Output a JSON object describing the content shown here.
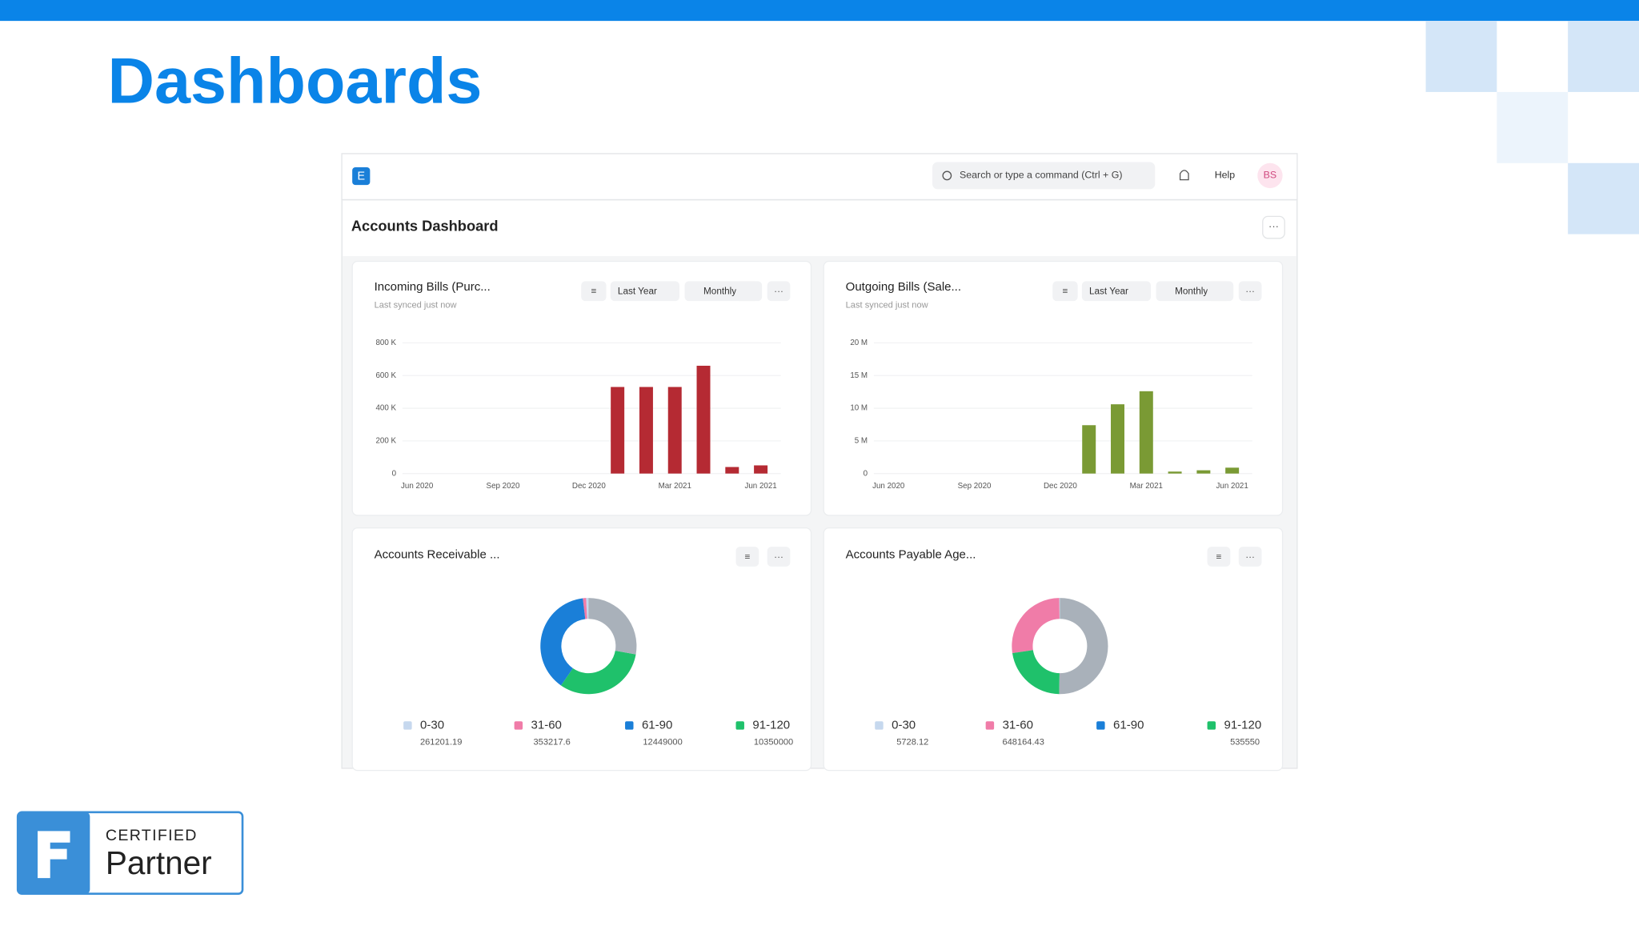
{
  "slide": {
    "title": "Dashboards",
    "badge": {
      "line1": "CERTIFIED",
      "line2": "Partner"
    }
  },
  "navbar": {
    "logo": "E",
    "search": "Search or type a command (Ctrl + G)",
    "help": "Help",
    "avatar": "BS"
  },
  "page": {
    "title": "Accounts Dashboard"
  },
  "chart_data": [
    {
      "type": "bar",
      "title": "Incoming Bills (Purc...",
      "subtitle": "Last synced just now",
      "filters": [
        "Last Year",
        "Monthly"
      ],
      "categories": [
        "Jun 2020",
        null,
        null,
        "Sep 2020",
        null,
        null,
        "Dec 2020",
        null,
        null,
        "Mar 2021",
        null,
        null,
        "Jun 2021"
      ],
      "values": [
        0,
        0,
        0,
        0,
        0,
        0,
        0,
        530000,
        530000,
        530000,
        660000,
        40000,
        50000
      ],
      "color": "#b52a33",
      "ylim": [
        0,
        800000
      ],
      "yticks": [
        0,
        {
          "value": 200000,
          "label": "200 K"
        },
        {
          "value": 400000,
          "label": "400 K"
        },
        {
          "value": 600000,
          "label": "600 K"
        },
        {
          "value": 800000,
          "label": "800 K"
        }
      ]
    },
    {
      "type": "bar",
      "title": "Outgoing Bills (Sale...",
      "subtitle": "Last synced just now",
      "filters": [
        "Last Year",
        "Monthly"
      ],
      "categories": [
        "Jun 2020",
        null,
        null,
        "Sep 2020",
        null,
        null,
        "Dec 2020",
        null,
        null,
        "Mar 2021",
        null,
        null,
        "Jun 2021"
      ],
      "values": [
        0,
        0,
        0,
        0,
        0,
        0,
        0,
        7400000,
        10600000,
        12600000,
        300000,
        500000,
        900000
      ],
      "color": "#7a9a34",
      "ylim": [
        0,
        20000000
      ],
      "yticks": [
        0,
        {
          "value": 5000000,
          "label": "5 M"
        },
        {
          "value": 10000000,
          "label": "10 M"
        },
        {
          "value": 15000000,
          "label": "15 M"
        },
        {
          "value": 20000000,
          "label": "20 M"
        }
      ]
    },
    {
      "type": "pie",
      "title": "Accounts Receivable ...",
      "categories": [
        "0-30",
        "31-60",
        "61-90",
        "91-120",
        null
      ],
      "values": [
        261201.19,
        353217.6,
        12449000,
        10350000,
        9000000
      ],
      "colors": [
        "#c6d8ee",
        "#f07ca8",
        "#1a7fd8",
        "#1fc16b",
        "#a9b1ba"
      ]
    },
    {
      "type": "pie",
      "title": "Accounts Payable Age...",
      "categories": [
        "0-30",
        "31-60",
        "61-90",
        "91-120",
        null
      ],
      "values": [
        5728.12,
        648164.43,
        null,
        535550,
        1200000
      ],
      "colors": [
        "#c6d8ee",
        "#f07ca8",
        "#1a7fd8",
        "#1fc16b",
        "#a9b1ba"
      ]
    }
  ]
}
